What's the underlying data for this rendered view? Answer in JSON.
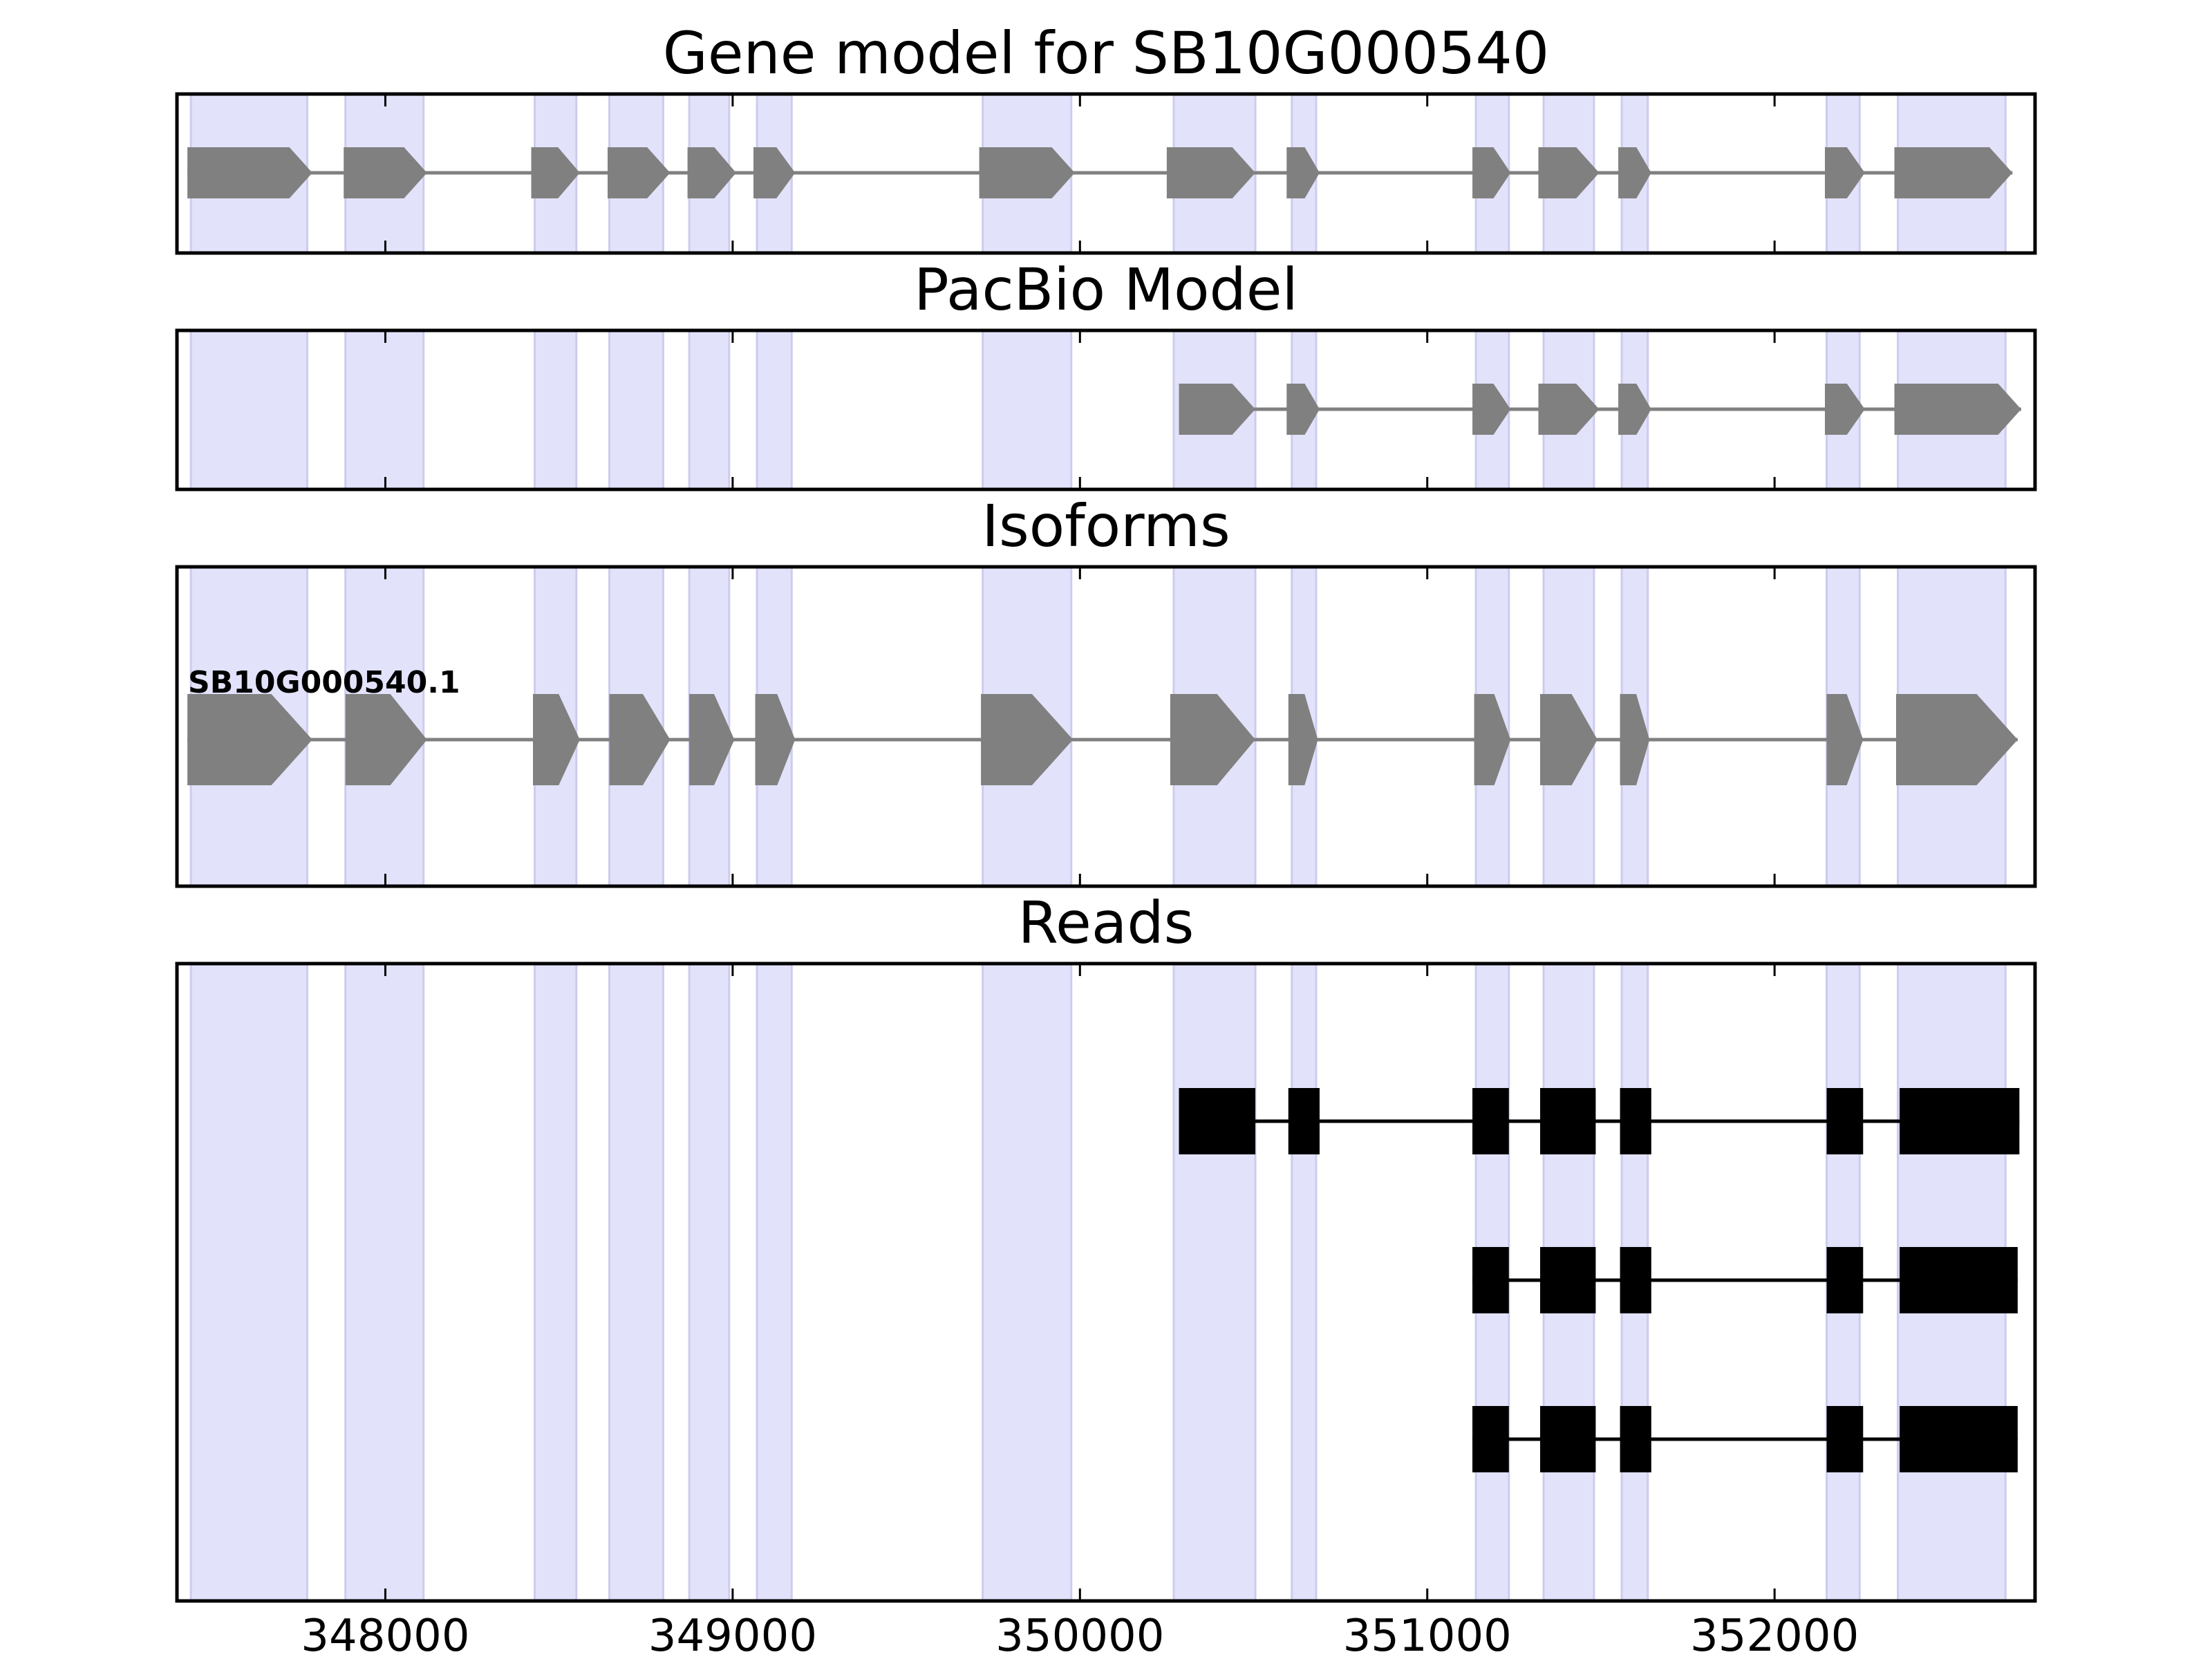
{
  "chart_data": {
    "type": "gene-structure",
    "xlim": [
      347400,
      352750
    ],
    "xticks": [
      348000,
      349000,
      350000,
      351000,
      352000
    ],
    "xtick_labels": [
      "348000",
      "349000",
      "350000",
      "351000",
      "352000"
    ],
    "highlight_color": "#e2e2fb",
    "exon_color": "#808080",
    "read_color": "#000000",
    "exon_regions": [
      [
        347440,
        347775
      ],
      [
        347885,
        348110
      ],
      [
        348430,
        348550
      ],
      [
        348645,
        348800
      ],
      [
        348875,
        348990
      ],
      [
        349070,
        349170
      ],
      [
        349720,
        349975
      ],
      [
        350270,
        350505
      ],
      [
        350610,
        350680
      ],
      [
        351140,
        351235
      ],
      [
        351335,
        351480
      ],
      [
        351560,
        351635
      ],
      [
        352150,
        352245
      ],
      [
        352355,
        352665
      ]
    ],
    "panels": [
      {
        "id": "gene-model",
        "title": "Gene model for SB10G000540",
        "tracks": [
          {
            "exons": [
              [
                347430,
                347790
              ],
              [
                347880,
                348120
              ],
              [
                348420,
                348560
              ],
              [
                348640,
                348820
              ],
              [
                348870,
                349010
              ],
              [
                349060,
                349180
              ],
              [
                349710,
                349985
              ],
              [
                350250,
                350505
              ],
              [
                350595,
                350690
              ],
              [
                351130,
                351240
              ],
              [
                351320,
                351495
              ],
              [
                351550,
                351645
              ],
              [
                352145,
                352260
              ],
              [
                352345,
                352685
              ]
            ]
          }
        ]
      },
      {
        "id": "pacbio-model",
        "title": "PacBio Model",
        "tracks": [
          {
            "exons": [
              [
                350285,
                350505
              ],
              [
                350595,
                350690
              ],
              [
                351130,
                351240
              ],
              [
                351320,
                351495
              ],
              [
                351550,
                351645
              ],
              [
                352145,
                352260
              ],
              [
                352345,
                352710
              ]
            ]
          }
        ]
      },
      {
        "id": "isoforms",
        "title": "Isoforms",
        "tracks": [
          {
            "label": "SB10G000540.1",
            "exons": [
              [
                347430,
                347790
              ],
              [
                347885,
                348120
              ],
              [
                348425,
                348560
              ],
              [
                348645,
                348820
              ],
              [
                348875,
                349005
              ],
              [
                349065,
                349180
              ],
              [
                349715,
                349980
              ],
              [
                350260,
                350505
              ],
              [
                350600,
                350685
              ],
              [
                351135,
                351240
              ],
              [
                351325,
                351490
              ],
              [
                351555,
                351640
              ],
              [
                352150,
                352255
              ],
              [
                352350,
                352700
              ]
            ]
          }
        ]
      },
      {
        "id": "reads",
        "title": "Reads",
        "tracks": [
          {
            "exons": [
              [
                350285,
                350505
              ],
              [
                350600,
                350690
              ],
              [
                351130,
                351235
              ],
              [
                351325,
                351485
              ],
              [
                351555,
                351645
              ],
              [
                352150,
                352255
              ],
              [
                352360,
                352705
              ]
            ]
          },
          {
            "exons": [
              [
                351130,
                351235
              ],
              [
                351325,
                351485
              ],
              [
                351555,
                351645
              ],
              [
                352150,
                352255
              ],
              [
                352360,
                352700
              ]
            ]
          },
          {
            "exons": [
              [
                351130,
                351235
              ],
              [
                351325,
                351485
              ],
              [
                351555,
                351645
              ],
              [
                352150,
                352255
              ],
              [
                352360,
                352700
              ]
            ]
          }
        ]
      }
    ]
  }
}
